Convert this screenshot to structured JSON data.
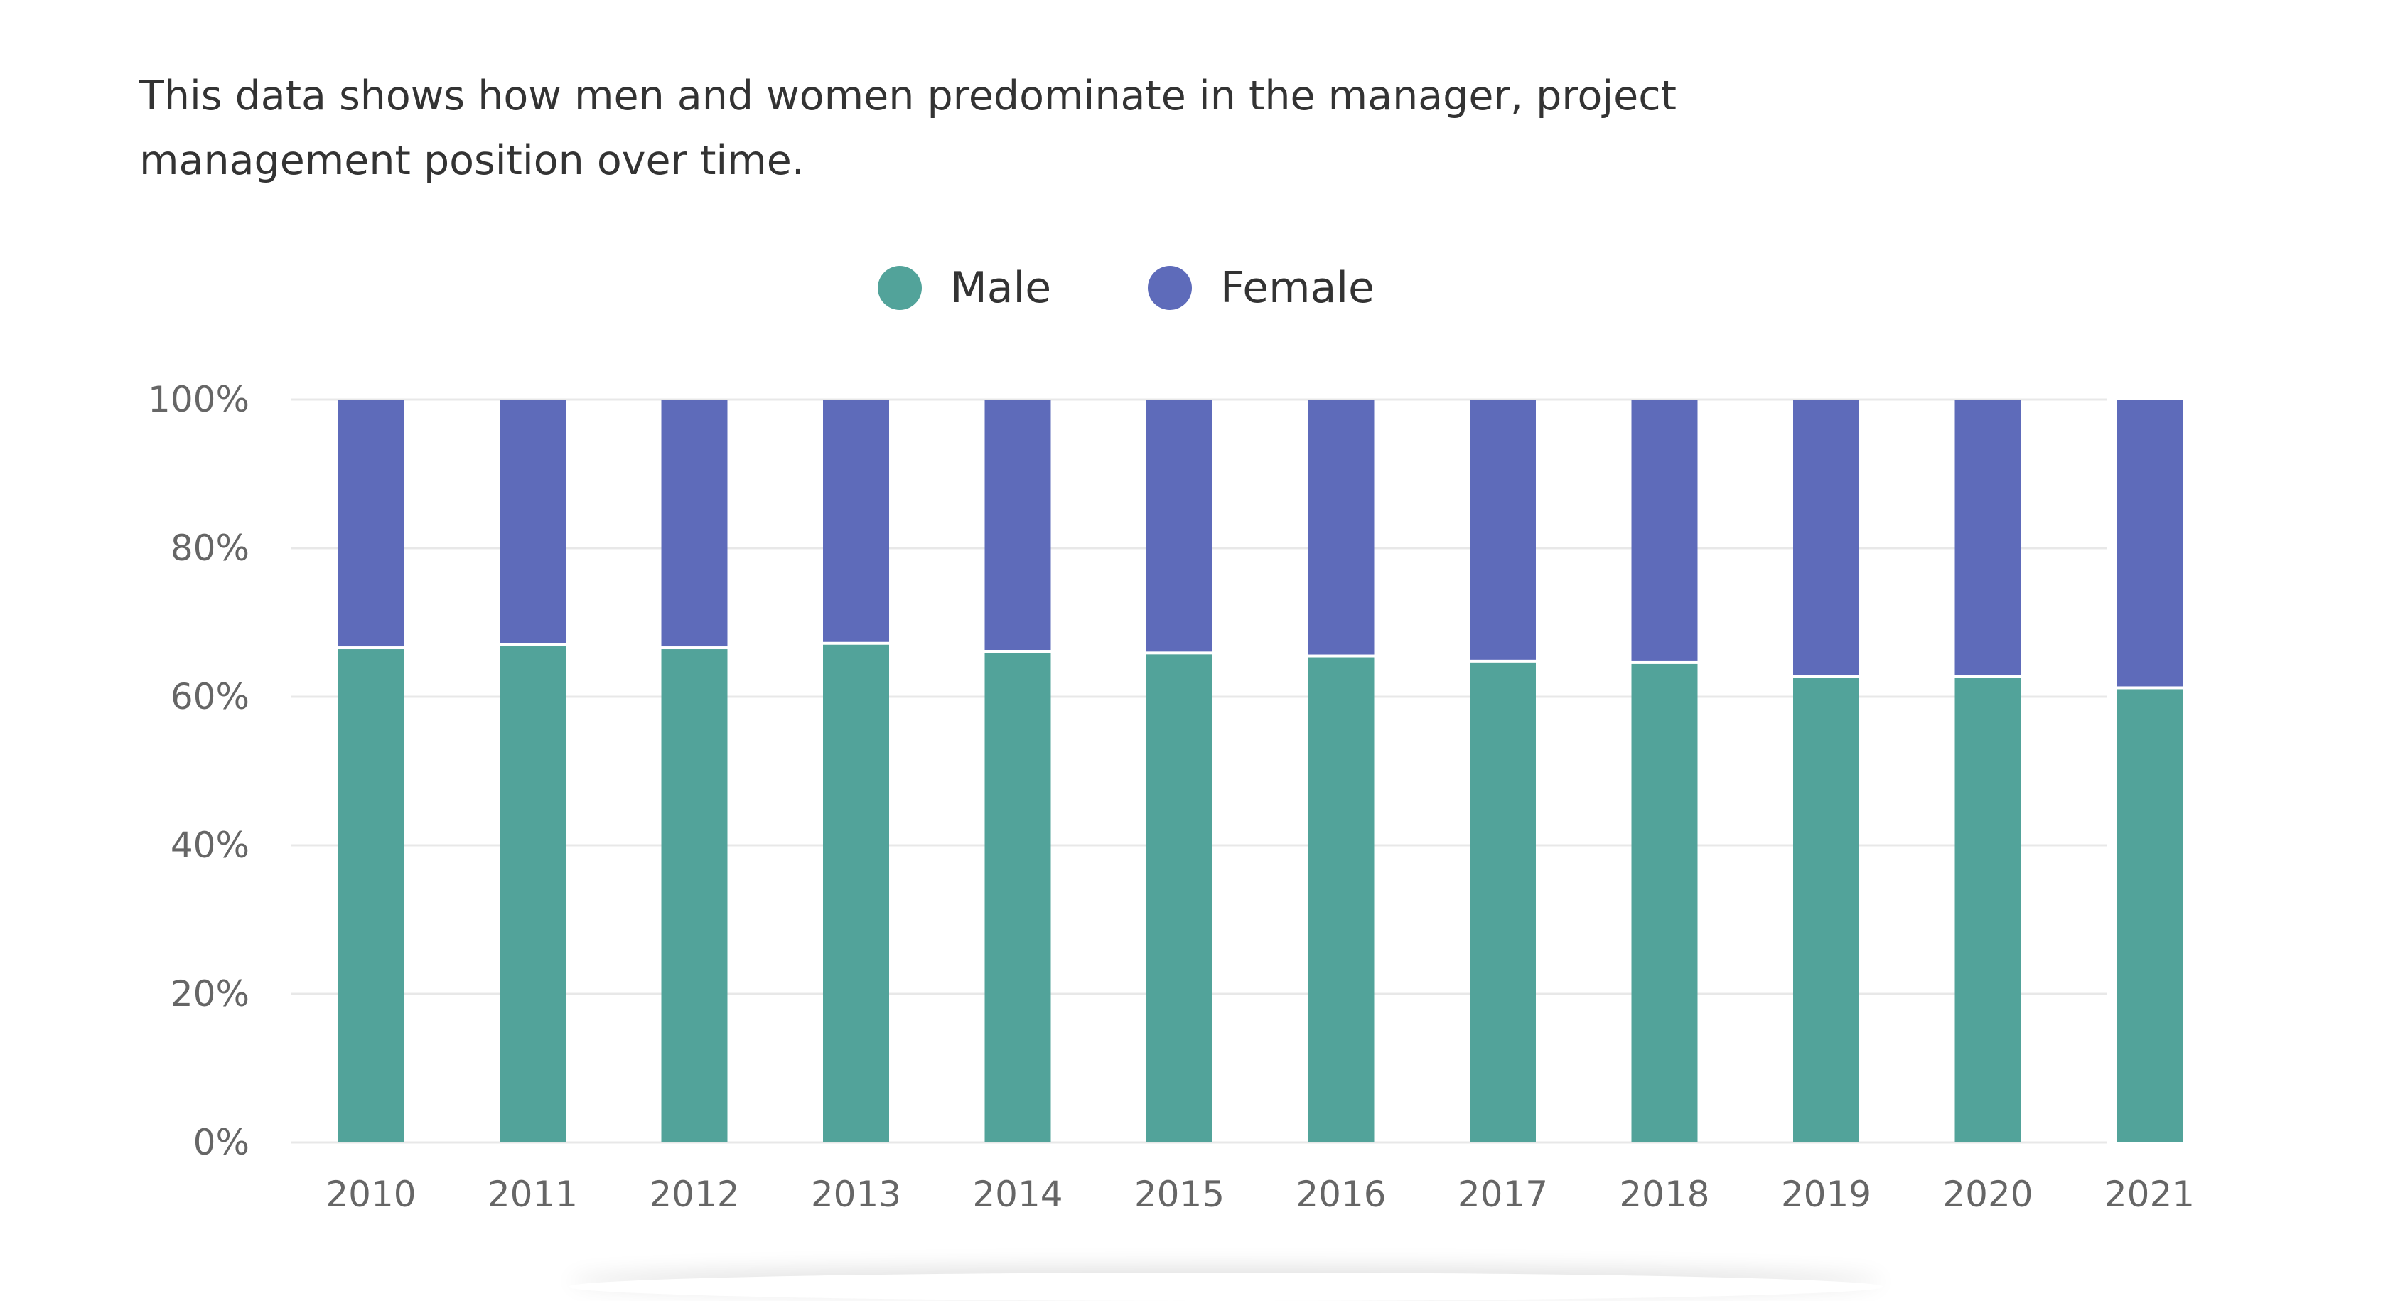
{
  "description": "This data shows how men and women predominate in the manager, project management position over time.",
  "colors": {
    "male": "#52a39a",
    "female": "#5e6bba",
    "grid": "#e8e8e8",
    "tick_text": "#666666"
  },
  "chart_data": {
    "type": "bar",
    "stacked": true,
    "normalized": true,
    "categories": [
      "2010",
      "2011",
      "2012",
      "2013",
      "2014",
      "2015",
      "2016",
      "2017",
      "2018",
      "2019",
      "2020",
      "2021"
    ],
    "series": [
      {
        "name": "Male",
        "color": "#52a39a",
        "values": [
          66.6,
          67.0,
          66.6,
          67.2,
          66.1,
          65.9,
          65.5,
          64.8,
          64.6,
          62.7,
          62.7,
          61.2
        ]
      },
      {
        "name": "Female",
        "color": "#5e6bba",
        "values": [
          33.4,
          33.0,
          33.4,
          32.8,
          33.9,
          34.1,
          34.5,
          35.2,
          35.4,
          37.3,
          37.3,
          38.8
        ]
      }
    ],
    "yticks": [
      "0%",
      "20%",
      "40%",
      "60%",
      "80%",
      "100%"
    ],
    "ylim": [
      0,
      100
    ],
    "grid": true,
    "legend_position": "top-center",
    "title": "",
    "xlabel": "",
    "ylabel": ""
  }
}
